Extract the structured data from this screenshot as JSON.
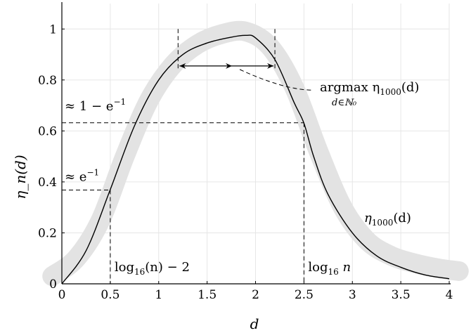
{
  "chart_data": {
    "type": "line",
    "xlabel": "d",
    "ylabel": "η_n(d)",
    "xlim": [
      0,
      4
    ],
    "ylim": [
      0,
      1.1
    ],
    "grid": true,
    "x_ticks": [
      "0",
      "0.5",
      "1",
      "1.5",
      "2",
      "2.5",
      "3",
      "3.5",
      "4"
    ],
    "y_ticks": [
      "0",
      "0.2",
      "0.4",
      "0.6",
      "0.8",
      "1"
    ],
    "series": [
      {
        "name": "η1000(d)",
        "color": "#000000",
        "x": [
          0,
          0.25,
          0.5,
          0.75,
          1.0,
          1.25,
          1.5,
          1.75,
          1.9,
          2.0,
          2.2,
          2.4,
          2.5,
          2.6,
          2.75,
          3.0,
          3.25,
          3.5,
          3.75,
          4.0
        ],
        "y": [
          0.0,
          0.13,
          0.37,
          0.62,
          0.8,
          0.9,
          0.945,
          0.968,
          0.975,
          0.965,
          0.88,
          0.71,
          0.63,
          0.5,
          0.35,
          0.2,
          0.11,
          0.065,
          0.035,
          0.02
        ]
      }
    ],
    "band": {
      "color": "#e3e3e3",
      "x": [
        -0.1,
        0.15,
        0.4,
        0.65,
        0.9,
        1.15,
        1.4,
        1.65,
        1.9,
        2.15,
        2.4,
        2.65,
        2.9,
        3.15,
        3.4,
        3.65,
        3.9,
        4.1
      ],
      "y": [
        0.03,
        0.1,
        0.25,
        0.5,
        0.72,
        0.86,
        0.94,
        0.98,
        0.99,
        0.93,
        0.77,
        0.52,
        0.3,
        0.17,
        0.11,
        0.08,
        0.06,
        0.05
      ]
    },
    "annotations": {
      "approx_1_minus_inv_e": {
        "text": "≈ 1 − e",
        "sup": "−1",
        "y": 0.632
      },
      "approx_inv_e": {
        "text": "≈ e",
        "sup": "−1",
        "y": 0.368
      },
      "log_minus_2": {
        "text": "log",
        "sub": "16",
        "rest": "(n) − 2",
        "x": 0.5
      },
      "log_n": {
        "text": "log",
        "sub": "16",
        "rest": " n",
        "x": 2.5
      },
      "argmax": {
        "text": "argmax η",
        "sub": "1000",
        "rest": "(d)",
        "under": "d∈ℕ₀"
      },
      "series_label": {
        "text": "η",
        "sub": "1000",
        "rest": "(d)"
      },
      "interval": [
        1.2,
        2.2
      ]
    }
  }
}
